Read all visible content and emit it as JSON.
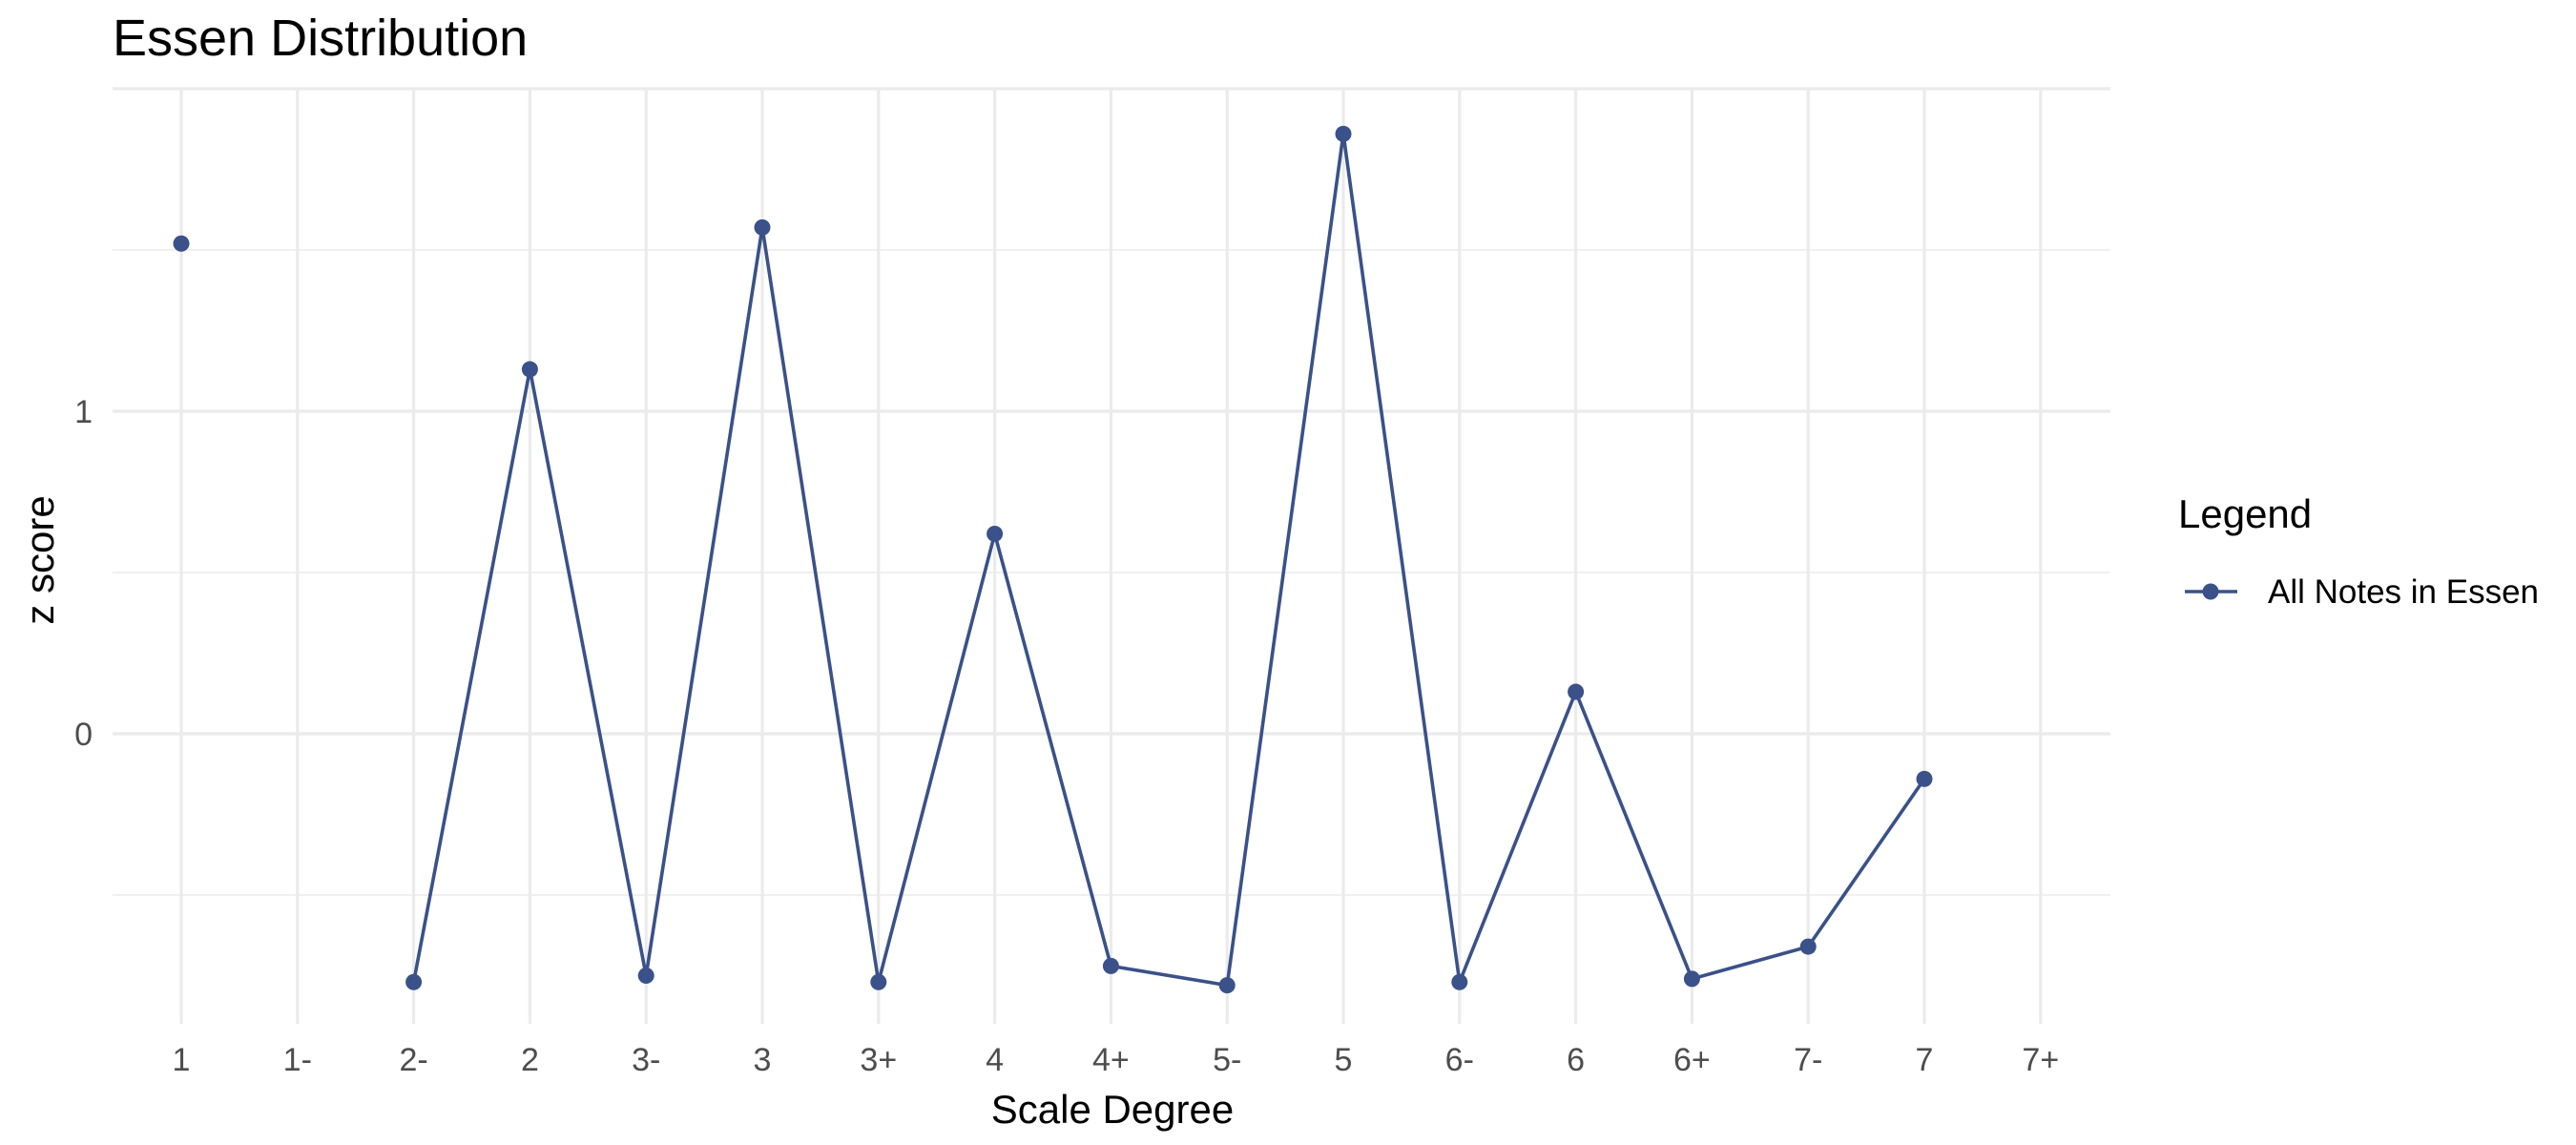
{
  "chart_data": {
    "type": "line",
    "title": "Essen Distribution",
    "xlabel": "Scale Degree",
    "ylabel": "z score",
    "categories": [
      "1",
      "1-",
      "2-",
      "2",
      "3-",
      "3",
      "3+",
      "4",
      "4+",
      "5-",
      "5",
      "6-",
      "6",
      "6+",
      "7-",
      "7",
      "7+"
    ],
    "series": [
      {
        "name": "All Notes in Essen",
        "values": [
          1.52,
          null,
          -0.77,
          1.13,
          -0.75,
          1.57,
          -0.77,
          0.62,
          -0.72,
          -0.78,
          1.86,
          -0.77,
          0.13,
          -0.76,
          -0.66,
          -0.14,
          null
        ],
        "color": "#3a5189"
      }
    ],
    "yticks": [
      0,
      1
    ],
    "ylim": [
      -0.9,
      2.0
    ],
    "grid": true,
    "legend": {
      "title": "Legend",
      "position": "right"
    }
  }
}
